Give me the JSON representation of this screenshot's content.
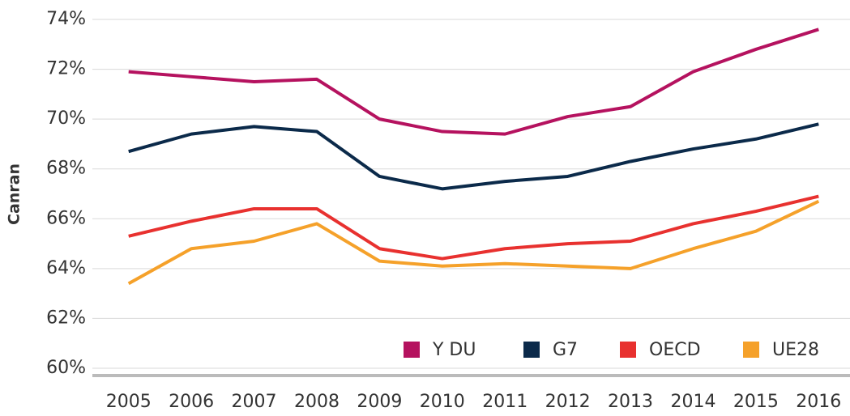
{
  "chart_data": {
    "type": "line",
    "y_label": "Canran",
    "categories": [
      "2005",
      "2006",
      "2007",
      "2008",
      "2009",
      "2010",
      "2011",
      "2012",
      "2013",
      "2014",
      "2015",
      "2016"
    ],
    "series": [
      {
        "name": "Y DU",
        "color": "#b5125f",
        "values": [
          71.9,
          71.7,
          71.5,
          71.6,
          70.0,
          69.5,
          69.4,
          70.1,
          70.5,
          71.9,
          72.8,
          73.6
        ]
      },
      {
        "name": "G7",
        "color": "#0b2a4a",
        "values": [
          68.7,
          69.4,
          69.7,
          69.5,
          67.7,
          67.2,
          67.5,
          67.7,
          68.3,
          68.8,
          69.2,
          69.8
        ]
      },
      {
        "name": "OECD",
        "color": "#e8312f",
        "values": [
          65.3,
          65.9,
          66.4,
          66.4,
          64.8,
          64.4,
          64.8,
          65.0,
          65.1,
          65.8,
          66.3,
          66.9
        ]
      },
      {
        "name": "UE28",
        "color": "#f5a12a",
        "values": [
          63.4,
          64.8,
          65.1,
          65.8,
          64.3,
          64.1,
          64.2,
          64.1,
          64.0,
          64.8,
          65.5,
          66.7
        ]
      }
    ],
    "ylim": [
      60,
      74
    ],
    "yticks": [
      {
        "value": 60,
        "label": "60%"
      },
      {
        "value": 62,
        "label": "62%"
      },
      {
        "value": 64,
        "label": "64%"
      },
      {
        "value": 66,
        "label": "66%"
      },
      {
        "value": 68,
        "label": "68%"
      },
      {
        "value": 70,
        "label": "70%"
      },
      {
        "value": 72,
        "label": "72%"
      },
      {
        "value": 74,
        "label": "74%"
      }
    ],
    "grid": true,
    "legend": "lower right"
  }
}
